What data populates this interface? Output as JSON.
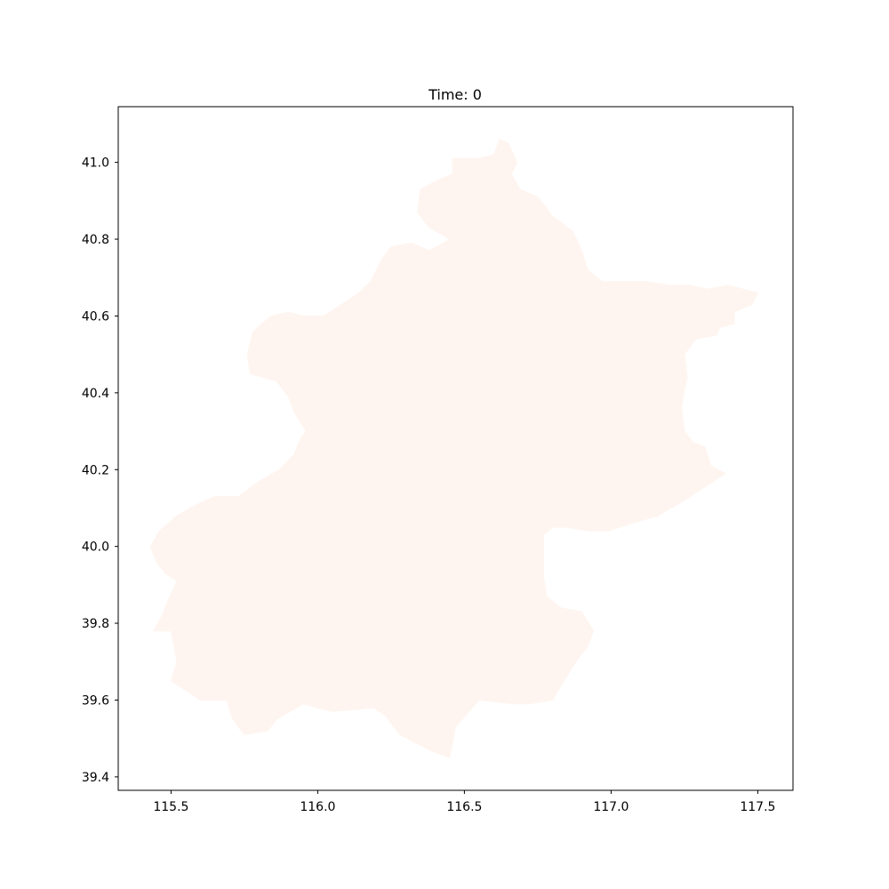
{
  "title": "Time: 0",
  "map": {
    "region_fill": "#fff5f0",
    "frame_color": "#000000",
    "x_axis": {
      "range": [
        115.32,
        117.62
      ],
      "ticks": [
        {
          "value": 115.5,
          "label": "115.5"
        },
        {
          "value": 116.0,
          "label": "116.0"
        },
        {
          "value": 116.5,
          "label": "116.5"
        },
        {
          "value": 117.0,
          "label": "117.0"
        },
        {
          "value": 117.5,
          "label": "117.5"
        }
      ]
    },
    "y_axis": {
      "range": [
        39.365,
        41.145
      ],
      "ticks": [
        {
          "value": 39.4,
          "label": "39.4"
        },
        {
          "value": 39.6,
          "label": "39.6"
        },
        {
          "value": 39.8,
          "label": "39.8"
        },
        {
          "value": 40.0,
          "label": "40.0"
        },
        {
          "value": 40.2,
          "label": "40.2"
        },
        {
          "value": 40.4,
          "label": "40.4"
        },
        {
          "value": 40.6,
          "label": "40.6"
        },
        {
          "value": 40.8,
          "label": "40.8"
        },
        {
          "value": 41.0,
          "label": "41.0"
        }
      ]
    },
    "boundary_lonlat": [
      [
        116.62,
        41.06
      ],
      [
        116.65,
        41.05
      ],
      [
        116.68,
        41.0
      ],
      [
        116.66,
        40.97
      ],
      [
        116.69,
        40.93
      ],
      [
        116.75,
        40.91
      ],
      [
        116.8,
        40.86
      ],
      [
        116.87,
        40.82
      ],
      [
        116.9,
        40.77
      ],
      [
        116.92,
        40.72
      ],
      [
        116.97,
        40.69
      ],
      [
        117.05,
        40.69
      ],
      [
        117.12,
        40.69
      ],
      [
        117.2,
        40.68
      ],
      [
        117.27,
        40.68
      ],
      [
        117.33,
        40.67
      ],
      [
        117.4,
        40.68
      ],
      [
        117.5,
        40.66
      ],
      [
        117.48,
        40.63
      ],
      [
        117.45,
        40.62
      ],
      [
        117.42,
        40.61
      ],
      [
        117.42,
        40.58
      ],
      [
        117.37,
        40.57
      ],
      [
        117.36,
        40.55
      ],
      [
        117.29,
        40.54
      ],
      [
        117.25,
        40.5
      ],
      [
        117.26,
        40.44
      ],
      [
        117.25,
        40.41
      ],
      [
        117.24,
        40.36
      ],
      [
        117.25,
        40.3
      ],
      [
        117.28,
        40.27
      ],
      [
        117.32,
        40.26
      ],
      [
        117.34,
        40.21
      ],
      [
        117.39,
        40.19
      ],
      [
        117.35,
        40.17
      ],
      [
        117.25,
        40.12
      ],
      [
        117.16,
        40.08
      ],
      [
        117.07,
        40.06
      ],
      [
        116.99,
        40.04
      ],
      [
        116.93,
        40.04
      ],
      [
        116.85,
        40.05
      ],
      [
        116.8,
        40.05
      ],
      [
        116.77,
        40.03
      ],
      [
        116.77,
        39.98
      ],
      [
        116.77,
        39.92
      ],
      [
        116.78,
        39.87
      ],
      [
        116.83,
        39.84
      ],
      [
        116.9,
        39.83
      ],
      [
        116.94,
        39.78
      ],
      [
        116.92,
        39.74
      ],
      [
        116.88,
        39.7
      ],
      [
        116.84,
        39.65
      ],
      [
        116.8,
        39.6
      ],
      [
        116.72,
        39.59
      ],
      [
        116.67,
        39.59
      ],
      [
        116.55,
        39.6
      ],
      [
        116.47,
        39.53
      ],
      [
        116.45,
        39.45
      ],
      [
        116.38,
        39.47
      ],
      [
        116.28,
        39.51
      ],
      [
        116.23,
        39.56
      ],
      [
        116.19,
        39.58
      ],
      [
        116.05,
        39.57
      ],
      [
        115.95,
        39.59
      ],
      [
        115.86,
        39.55
      ],
      [
        115.83,
        39.52
      ],
      [
        115.75,
        39.51
      ],
      [
        115.71,
        39.55
      ],
      [
        115.69,
        39.6
      ],
      [
        115.6,
        39.6
      ],
      [
        115.56,
        39.62
      ],
      [
        115.5,
        39.65
      ],
      [
        115.52,
        39.7
      ],
      [
        115.5,
        39.78
      ],
      [
        115.44,
        39.78
      ],
      [
        115.47,
        39.82
      ],
      [
        115.49,
        39.86
      ],
      [
        115.52,
        39.91
      ],
      [
        115.48,
        39.93
      ],
      [
        115.45,
        39.96
      ],
      [
        115.43,
        40.0
      ],
      [
        115.46,
        40.04
      ],
      [
        115.52,
        40.08
      ],
      [
        115.59,
        40.11
      ],
      [
        115.65,
        40.13
      ],
      [
        115.73,
        40.13
      ],
      [
        115.8,
        40.17
      ],
      [
        115.87,
        40.2
      ],
      [
        115.92,
        40.24
      ],
      [
        115.94,
        40.28
      ],
      [
        115.96,
        40.3
      ],
      [
        115.92,
        40.35
      ],
      [
        115.9,
        40.39
      ],
      [
        115.86,
        40.43
      ],
      [
        115.77,
        40.45
      ],
      [
        115.76,
        40.5
      ],
      [
        115.78,
        40.56
      ],
      [
        115.84,
        40.6
      ],
      [
        115.9,
        40.61
      ],
      [
        115.95,
        40.6
      ],
      [
        116.02,
        40.6
      ],
      [
        116.08,
        40.63
      ],
      [
        116.14,
        40.66
      ],
      [
        116.18,
        40.69
      ],
      [
        116.22,
        40.75
      ],
      [
        116.25,
        40.78
      ],
      [
        116.32,
        40.79
      ],
      [
        116.38,
        40.77
      ],
      [
        116.45,
        40.8
      ],
      [
        116.38,
        40.83
      ],
      [
        116.34,
        40.87
      ],
      [
        116.35,
        40.93
      ],
      [
        116.4,
        40.95
      ],
      [
        116.46,
        40.97
      ],
      [
        116.46,
        41.01
      ],
      [
        116.55,
        41.01
      ],
      [
        116.6,
        41.02
      ]
    ]
  }
}
